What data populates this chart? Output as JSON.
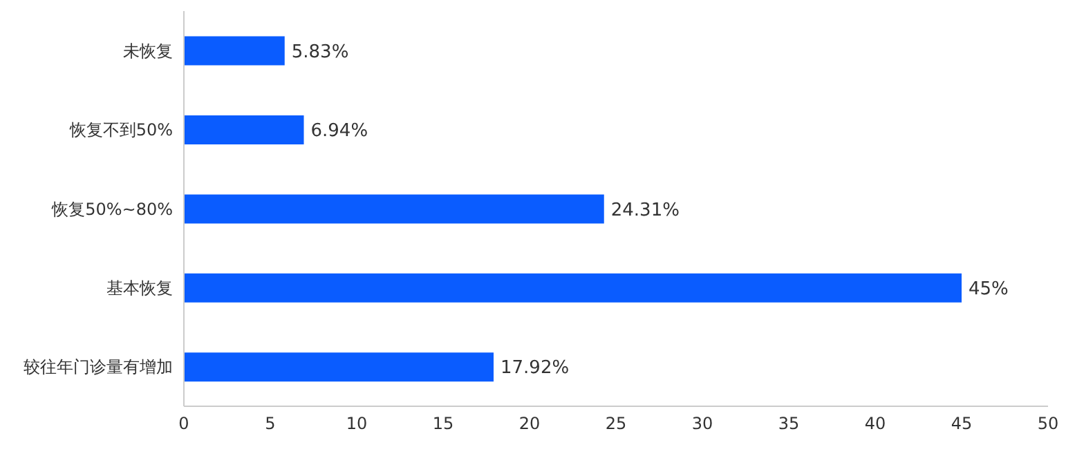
{
  "chart_data": {
    "type": "bar",
    "orientation": "horizontal",
    "categories": [
      "未恢复",
      "恢复不到50%",
      "恢复50%~80%",
      "基本恢复",
      "较往年门诊量有增加"
    ],
    "values": [
      5.83,
      6.94,
      24.31,
      45,
      17.92
    ],
    "value_labels": [
      "5.83%",
      "6.94%",
      "24.31%",
      "45%",
      "17.92%"
    ],
    "color": "#0a5cff",
    "xlim": [
      0,
      50
    ],
    "xticks": [
      0,
      5,
      10,
      15,
      20,
      25,
      30,
      35,
      40,
      45,
      50
    ]
  }
}
